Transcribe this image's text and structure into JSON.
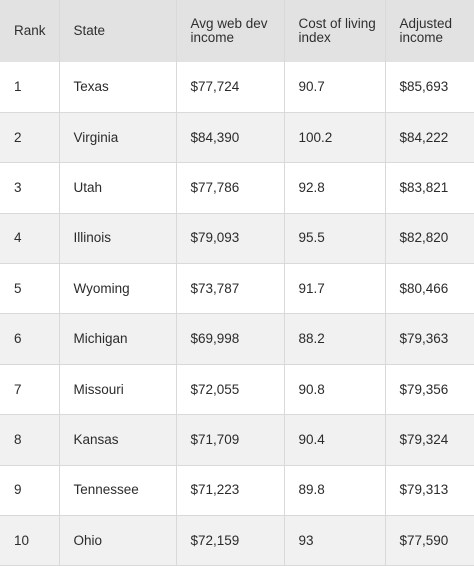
{
  "table": {
    "headers": {
      "rank": "Rank",
      "state": "State",
      "avg": "Avg web dev income",
      "col": "Cost of living index",
      "adj": "Adjusted income"
    },
    "rows": [
      {
        "rank": "1",
        "state": "Texas",
        "avg": "$77,724",
        "col": "90.7",
        "adj": "$85,693"
      },
      {
        "rank": "2",
        "state": "Virginia",
        "avg": "$84,390",
        "col": "100.2",
        "adj": "$84,222"
      },
      {
        "rank": "3",
        "state": "Utah",
        "avg": "$77,786",
        "col": "92.8",
        "adj": "$83,821"
      },
      {
        "rank": "4",
        "state": "Illinois",
        "avg": "$79,093",
        "col": "95.5",
        "adj": "$82,820"
      },
      {
        "rank": "5",
        "state": "Wyoming",
        "avg": "$73,787",
        "col": "91.7",
        "adj": "$80,466"
      },
      {
        "rank": "6",
        "state": "Michigan",
        "avg": "$69,998",
        "col": "88.2",
        "adj": "$79,363"
      },
      {
        "rank": "7",
        "state": "Missouri",
        "avg": "$72,055",
        "col": "90.8",
        "adj": "$79,356"
      },
      {
        "rank": "8",
        "state": "Kansas",
        "avg": "$71,709",
        "col": "90.4",
        "adj": "$79,324"
      },
      {
        "rank": "9",
        "state": "Tennessee",
        "avg": "$71,223",
        "col": "89.8",
        "adj": "$79,313"
      },
      {
        "rank": "10",
        "state": "Ohio",
        "avg": "$72,159",
        "col": "93",
        "adj": "$77,590"
      }
    ]
  }
}
